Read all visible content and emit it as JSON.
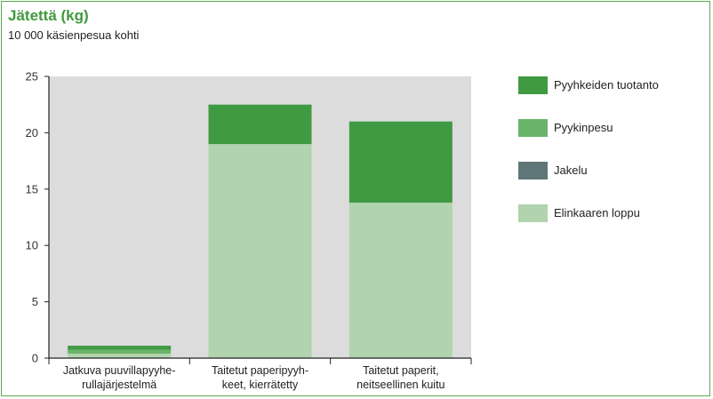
{
  "chart_data": {
    "type": "bar",
    "stacked": true,
    "title": "Jätettä (kg)",
    "subtitle": "10 000 käsienpesua kohti",
    "xlabel": "",
    "ylabel": "",
    "ylim": [
      0,
      25
    ],
    "yticks": [
      0,
      5,
      10,
      15,
      20,
      25
    ],
    "grid": false,
    "legend_position": "right",
    "categories": [
      [
        "Jatkuva puuvillapyyhe-",
        "rullajärjestelmä"
      ],
      [
        "Taitetut paperipyyh-",
        "keet, kierrätetty"
      ],
      [
        "Taitetut paperit,",
        "neitseellinen kuitu"
      ]
    ],
    "series": [
      {
        "name": "Elinkaaren loppu",
        "color": "#b1d3ad",
        "values": [
          0.4,
          19.0,
          13.8
        ]
      },
      {
        "name": "Jakelu",
        "color": "#5f7679",
        "values": [
          0.0,
          0.0,
          0.0
        ]
      },
      {
        "name": "Pyykinpesu",
        "color": "#6ab46a",
        "values": [
          0.35,
          0.0,
          0.0
        ]
      },
      {
        "name": "Pyyhkeiden tuotanto",
        "color": "#3f9a42",
        "values": [
          0.35,
          3.5,
          7.2
        ]
      }
    ],
    "legend_order": [
      "Pyyhkeiden tuotanto",
      "Pyykinpesu",
      "Jakelu",
      "Elinkaaren loppu"
    ]
  }
}
